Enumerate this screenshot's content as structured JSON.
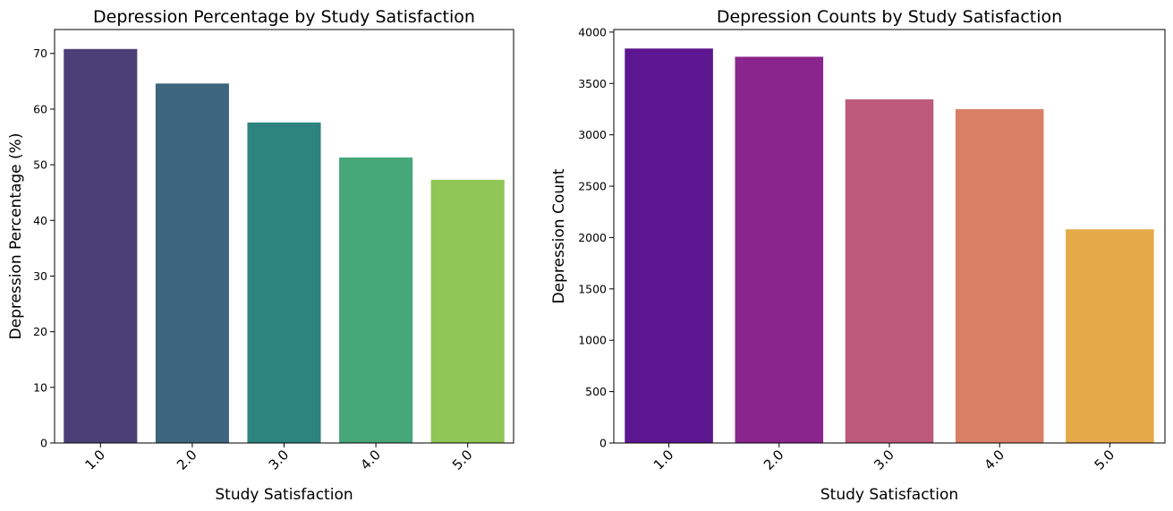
{
  "chart_data": [
    {
      "type": "bar",
      "title": "Depression Percentage by Study Satisfaction",
      "xlabel": "Study Satisfaction",
      "ylabel": "Depression Percentage (%)",
      "categories": [
        "1.0",
        "2.0",
        "3.0",
        "4.0",
        "5.0"
      ],
      "values": [
        70.8,
        64.6,
        57.6,
        51.3,
        47.3
      ],
      "ylim": [
        0,
        74.3
      ],
      "yticks": [
        0,
        10,
        20,
        30,
        40,
        50,
        60,
        70
      ],
      "colors": [
        "#4a3f76",
        "#3d667e",
        "#2d837e",
        "#46a779",
        "#8fc655"
      ],
      "grid": false,
      "xtick_rotation": -45
    },
    {
      "type": "bar",
      "title": "Depression Counts by Study Satisfaction",
      "xlabel": "Study Satisfaction",
      "ylabel": "Depression Count",
      "categories": [
        "1.0",
        "2.0",
        "3.0",
        "4.0",
        "5.0"
      ],
      "values": [
        3840,
        3760,
        3345,
        3250,
        2080
      ],
      "ylim": [
        0,
        4025
      ],
      "yticks": [
        0,
        500,
        1000,
        1500,
        2000,
        2500,
        3000,
        3500,
        4000
      ],
      "colors": [
        "#5c168f",
        "#89258c",
        "#bd5a7b",
        "#d88167",
        "#e3aa47"
      ],
      "grid": false,
      "xtick_rotation": -45
    }
  ]
}
